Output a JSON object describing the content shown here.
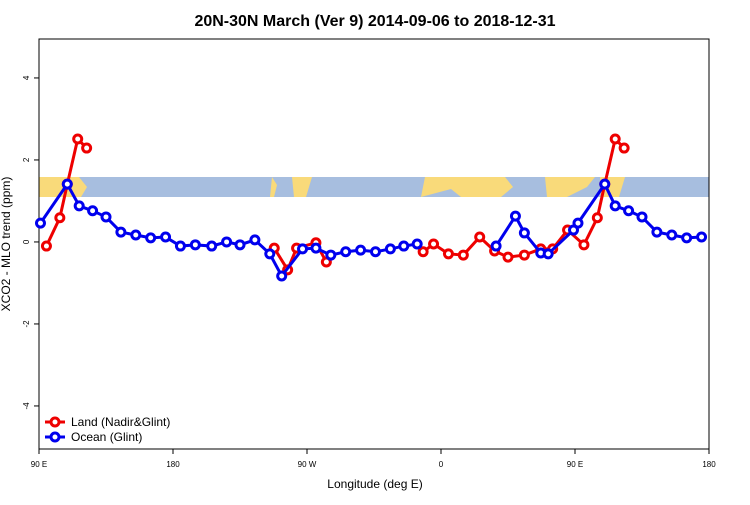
{
  "chart_data": {
    "type": "line",
    "title": "20N-30N March (Ver 9)   2014-09-06 to 2018-12-31",
    "xlabel": "Longitude (deg E)",
    "ylabel": "XCO2 - MLO trend (ppm)",
    "xlim": [
      90,
      540
    ],
    "xticks": [
      {
        "value": 90,
        "label": "90 E"
      },
      180,
      {
        "value": 270,
        "label": "90 W"
      },
      {
        "value": 360,
        "label": "0"
      },
      {
        "value": 450,
        "label": "90 E"
      },
      {
        "value": 540,
        "label": "180"
      }
    ],
    "ylim": [
      -5.05,
      4.95
    ],
    "yticks": [
      -4,
      -2,
      0,
      2,
      4
    ],
    "legend": "bottom-left",
    "series": [
      {
        "name": "Land (Nadir&Glint)",
        "color": "#ee0000",
        "x": [
          95,
          104,
          109,
          116,
          122,
          190,
          248,
          257,
          263,
          276,
          283,
          320,
          348,
          355,
          365,
          375,
          386,
          396,
          405,
          416,
          427,
          435,
          445,
          456,
          465,
          470,
          477,
          483
        ],
        "values": [
          -0.1,
          0.59,
          1.41,
          2.51,
          2.29,
          null,
          -0.15,
          -0.68,
          -0.15,
          -0.02,
          -0.49,
          null,
          -0.24,
          -0.05,
          -0.29,
          -0.32,
          0.12,
          -0.22,
          -0.37,
          -0.32,
          -0.17,
          -0.17,
          0.29,
          -0.07,
          0.59,
          1.41,
          2.51,
          2.29
        ]
      },
      {
        "name": "Ocean (Glint)",
        "color": "#0000ee",
        "x": [
          91,
          109,
          117,
          126,
          135,
          145,
          155,
          165,
          175,
          185,
          195,
          206,
          216,
          225,
          235,
          245,
          253,
          267,
          276,
          286,
          296,
          306,
          316,
          326,
          335,
          344,
          370,
          397,
          410,
          416,
          427,
          432,
          449,
          452,
          470,
          477,
          486,
          495,
          505,
          515,
          525,
          535
        ],
        "values": [
          0.46,
          1.41,
          0.88,
          0.76,
          0.61,
          0.24,
          0.17,
          0.1,
          0.12,
          -0.1,
          -0.07,
          -0.1,
          0.0,
          -0.07,
          0.05,
          -0.29,
          -0.83,
          -0.17,
          -0.15,
          -0.32,
          -0.24,
          -0.2,
          -0.24,
          -0.17,
          -0.1,
          -0.05,
          null,
          -0.1,
          0.63,
          0.22,
          -0.27,
          -0.29,
          0.29,
          0.46,
          1.41,
          0.88,
          0.76,
          0.61,
          0.24,
          0.17,
          0.1,
          0.12
        ]
      }
    ]
  }
}
